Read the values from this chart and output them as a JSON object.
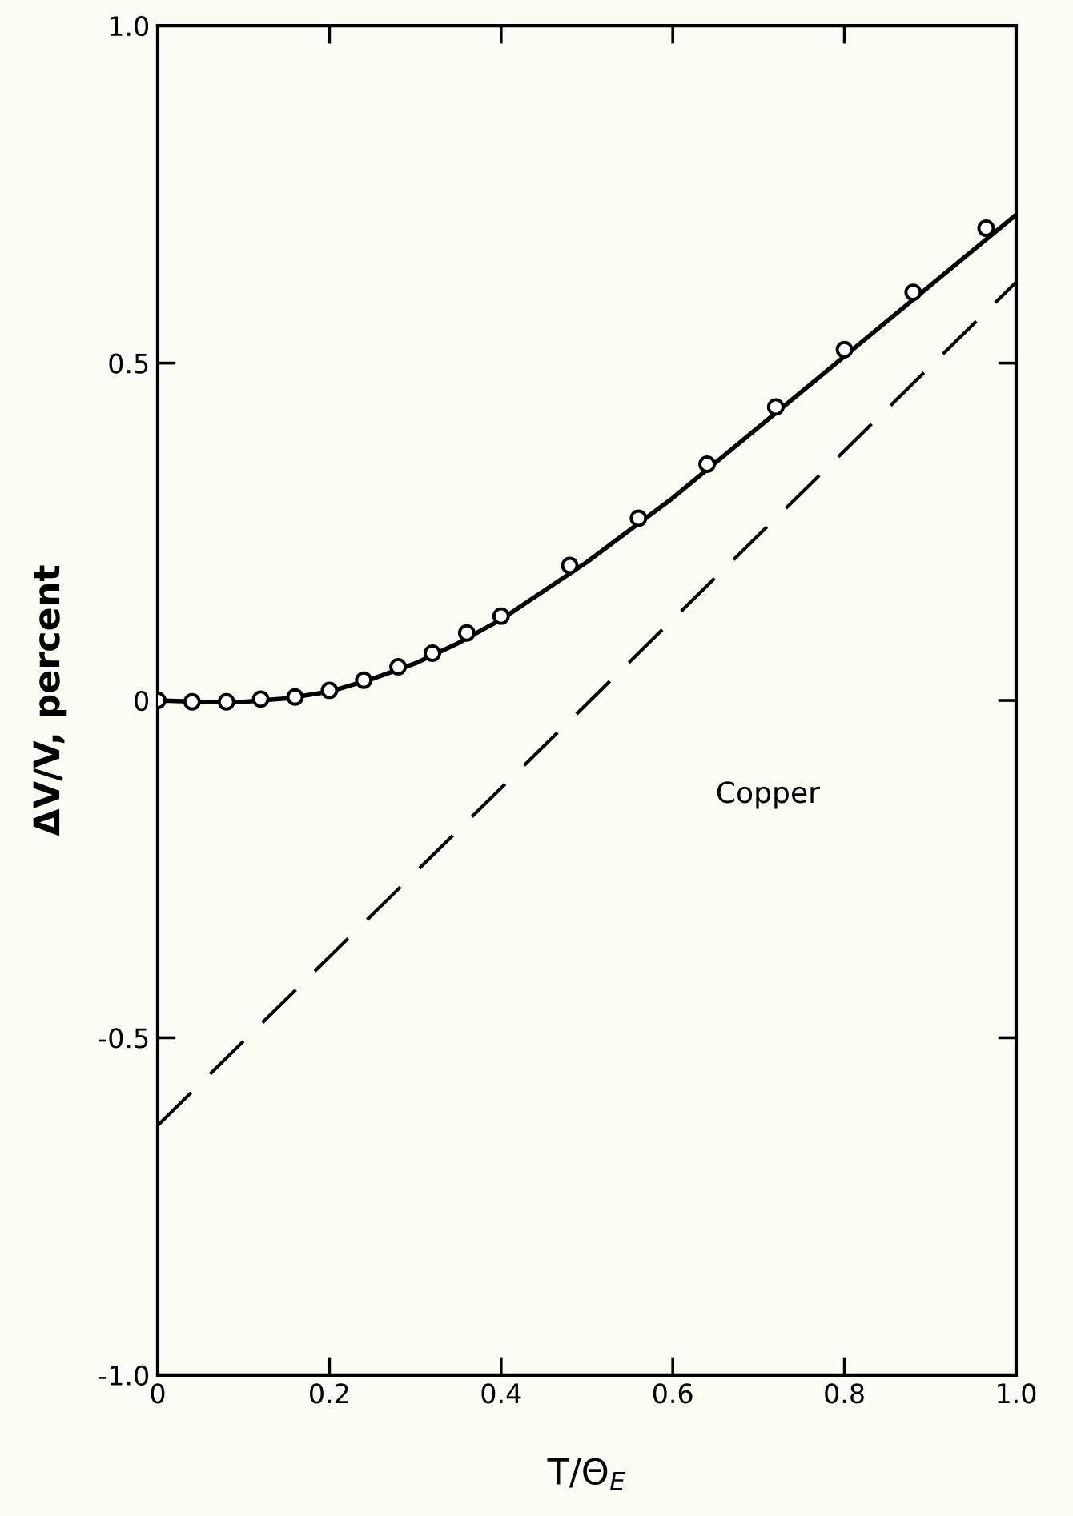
{
  "chart_data": {
    "type": "line",
    "xlabel": "T/Θ$_{E}$",
    "ylabel": "ΔV/V, percent",
    "xlim": [
      0,
      1.0
    ],
    "ylim": [
      -1.0,
      1.0
    ],
    "xticks": [
      0,
      {
        "value": 0.2,
        "label": "0.2"
      },
      {
        "value": 0.4,
        "label": "0.4"
      },
      {
        "value": 0.6,
        "label": "0.6"
      },
      {
        "value": 0.8,
        "label": "0.8"
      },
      {
        "value": 1.0,
        "label": "1.0"
      }
    ],
    "yticks": [
      {
        "value": -1.0,
        "label": "-1.0"
      },
      {
        "value": -0.5,
        "label": "-0.5"
      },
      0,
      {
        "value": 0.5,
        "label": "0.5"
      },
      {
        "value": 1.0,
        "label": "1.0"
      }
    ],
    "annotations": [
      "Copper"
    ],
    "series": [
      {
        "type": "scatter",
        "color": "#000000",
        "marker": "circle",
        "x": [
          0,
          0.04,
          0.08,
          0.12,
          0.16,
          0.2,
          0.24,
          0.28,
          0.32,
          0.36,
          0.4,
          0.48,
          0.56,
          0.64,
          0.72,
          0.8,
          0.88,
          0.965
        ],
        "values": [
          0,
          -0.002,
          -0.002,
          0.002,
          0.005,
          0.015,
          0.03,
          0.05,
          0.07,
          0.1,
          0.125,
          0.2,
          0.27,
          0.35,
          0.435,
          0.52,
          0.605,
          0.7
        ]
      },
      {
        "color": "#000000",
        "line_style": "solid",
        "x": [
          0,
          0.05,
          0.1,
          0.15,
          0.2,
          0.25,
          0.3,
          0.35,
          0.4,
          0.5,
          0.6,
          0.7,
          0.8,
          0.9,
          1.0
        ],
        "values": [
          0,
          -0.002,
          -0.002,
          0.003,
          0.013,
          0.032,
          0.055,
          0.085,
          0.12,
          0.205,
          0.3,
          0.405,
          0.51,
          0.615,
          0.72
        ]
      },
      {
        "color": "#000000",
        "line_style": "dashed",
        "x": [
          0,
          1.0
        ],
        "values": [
          -0.63,
          0.62
        ]
      }
    ]
  }
}
